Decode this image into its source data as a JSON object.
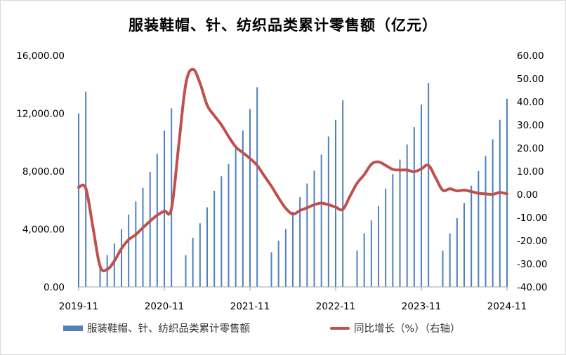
{
  "colors": {
    "bar": "#4f81bd",
    "line": "#c0504d",
    "axis": "#a6a6a6"
  },
  "chart_data": {
    "type": "bar+line",
    "title": "服装鞋帽、针、纺织品类累计零售额（亿元）",
    "x_ticks": [
      "2019-11",
      "2020-11",
      "2021-11",
      "2022-11",
      "2023-11",
      "2024-11"
    ],
    "y_left": {
      "range": [
        0,
        16000
      ],
      "tick_labels": [
        "0.00",
        "4,000.00",
        "8,000.00",
        "12,000.00",
        "16,000.00"
      ]
    },
    "y_right": {
      "range": [
        -40,
        60
      ],
      "tick_labels": [
        "-40.00",
        "-30.00",
        "-20.00",
        "-10.00",
        "0.00",
        "10.00",
        "20.00",
        "30.00",
        "40.00",
        "50.00",
        "60.00"
      ]
    },
    "categories": [
      "2019-11",
      "2019-12",
      "2020-01",
      "2020-02",
      "2020-03",
      "2020-04",
      "2020-05",
      "2020-06",
      "2020-07",
      "2020-08",
      "2020-09",
      "2020-10",
      "2020-11",
      "2020-12",
      "2021-01",
      "2021-02",
      "2021-03",
      "2021-04",
      "2021-05",
      "2021-06",
      "2021-07",
      "2021-08",
      "2021-09",
      "2021-10",
      "2021-11",
      "2021-12",
      "2022-01",
      "2022-02",
      "2022-03",
      "2022-04",
      "2022-05",
      "2022-06",
      "2022-07",
      "2022-08",
      "2022-09",
      "2022-10",
      "2022-11",
      "2022-12",
      "2023-01",
      "2023-02",
      "2023-03",
      "2023-04",
      "2023-05",
      "2023-06",
      "2023-07",
      "2023-08",
      "2023-09",
      "2023-10",
      "2023-11",
      "2023-12",
      "2024-01",
      "2024-02",
      "2024-03",
      "2024-04",
      "2024-05",
      "2024-06",
      "2024-07",
      "2024-08",
      "2024-09",
      "2024-10",
      "2024-11"
    ],
    "series": [
      {
        "name": "服装鞋帽、针、纺织品类累计零售额",
        "type": "bar",
        "axis": "left",
        "values": [
          12000,
          13500,
          null,
          1650,
          2200,
          3000,
          4000,
          5000,
          5900,
          6850,
          7950,
          9200,
          10800,
          12350,
          null,
          2200,
          3400,
          4400,
          5500,
          6650,
          7650,
          8500,
          9800,
          10800,
          12300,
          13800,
          null,
          2400,
          3200,
          4000,
          5200,
          6200,
          7150,
          8050,
          9150,
          10400,
          11550,
          12900,
          null,
          2500,
          3700,
          4600,
          5600,
          6800,
          7800,
          8800,
          9850,
          11050,
          12600,
          14100,
          null,
          2500,
          3700,
          4750,
          5800,
          7000,
          8000,
          9050,
          10200,
          11550,
          13000
        ]
      },
      {
        "name": "同比增长（%）（右轴）",
        "type": "line",
        "axis": "right",
        "values": [
          3.0,
          2.6,
          null,
          -31.0,
          -32.4,
          -28.8,
          -23.4,
          -19.6,
          -17.4,
          -14.4,
          -11.6,
          -9.0,
          -7.2,
          -6.2,
          null,
          47.5,
          54.0,
          48.0,
          38.5,
          34.0,
          30.0,
          25.0,
          20.5,
          18.0,
          15.5,
          12.5,
          null,
          3.5,
          -1.5,
          -6.0,
          -8.5,
          -7.0,
          -5.8,
          -4.5,
          -3.8,
          -4.5,
          -5.5,
          -6.5,
          null,
          4.8,
          8.5,
          13.0,
          14.0,
          12.5,
          10.8,
          10.5,
          10.5,
          9.8,
          11.0,
          12.5,
          null,
          1.8,
          2.4,
          1.5,
          1.8,
          1.2,
          0.5,
          0.2,
          0.0,
          0.8,
          0.2
        ]
      }
    ],
    "legend": {
      "position": "bottom",
      "entries": [
        "服装鞋帽、针、纺织品类累计零售额",
        "同比增长（%）（右轴）"
      ]
    },
    "grid": false
  }
}
